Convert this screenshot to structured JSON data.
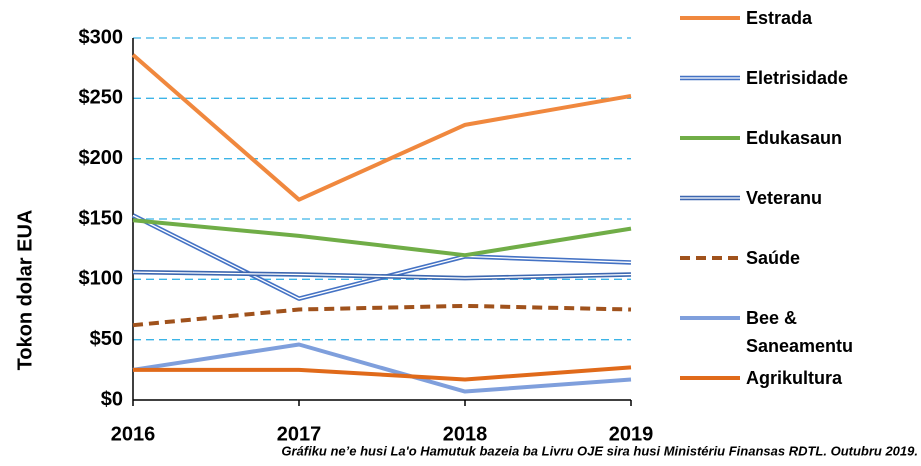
{
  "chart_data": {
    "type": "line",
    "y_label": "Tokon dolar EUA",
    "caption": "Gráfiku ne’e husi La'o Hamutuk bazeia ba Livru OJE sira husi Ministériu Finansas RDTL. Outubru 2019.",
    "categories": [
      "2016",
      "2017",
      "2018",
      "2019"
    ],
    "ylim": [
      0,
      300
    ],
    "yticks": [
      {
        "value": 0,
        "label": "$0"
      },
      {
        "value": 50,
        "label": "$50"
      },
      {
        "value": 100,
        "label": "$100"
      },
      {
        "value": 150,
        "label": "$150"
      },
      {
        "value": 200,
        "label": "$200"
      },
      {
        "value": 250,
        "label": "$250"
      },
      {
        "value": 300,
        "label": "$300"
      }
    ],
    "grid": true,
    "legend": "right",
    "series": [
      {
        "name": "Estrada",
        "color": "#f0883e",
        "style": "solid",
        "values": [
          286,
          166,
          228,
          252
        ]
      },
      {
        "name": "Eletrisidade",
        "color": "#4472c4",
        "style": "double",
        "values": [
          153,
          84,
          119,
          114
        ]
      },
      {
        "name": "Edukasaun",
        "color": "#70ad47",
        "style": "solid",
        "values": [
          149,
          136,
          120,
          142
        ]
      },
      {
        "name": "Veteranu",
        "color": "#3d67b0",
        "style": "double",
        "values": [
          106,
          104,
          101,
          104
        ]
      },
      {
        "name": "Saúde",
        "color": "#a0521c",
        "style": "dashed",
        "values": [
          62,
          75,
          78,
          75
        ]
      },
      {
        "name": "Bee & Saneamentu",
        "color": "#7f9fdc",
        "style": "solid",
        "values": [
          25,
          46,
          7,
          17
        ]
      },
      {
        "name": "Agrikultura",
        "color": "#e06a1a",
        "style": "solid",
        "values": [
          25,
          25,
          17,
          27
        ]
      }
    ]
  }
}
